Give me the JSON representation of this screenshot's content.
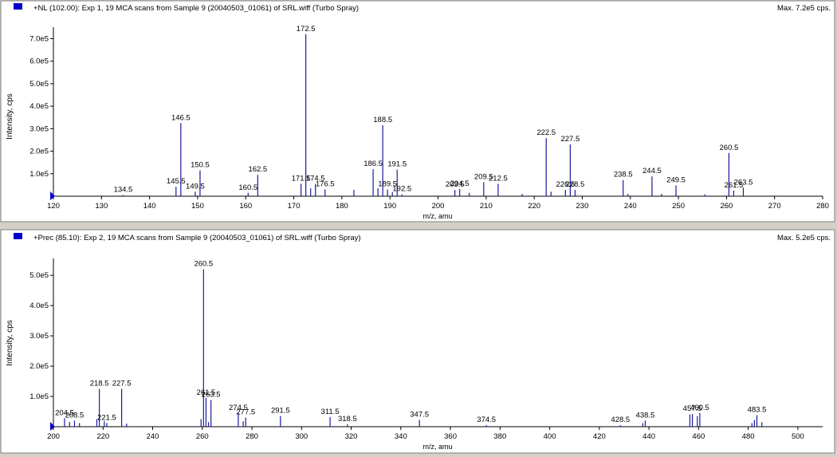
{
  "chart_data": [
    {
      "type": "bar",
      "title": "+NL (102.00): Exp 1, 19 MCA scans from Sample 9 (20040503_01061) of SRL.wiff (Turbo Spray)",
      "max_label": "Max. 7.2e5 cps.",
      "xlabel": "m/z, amu",
      "ylabel": "Intensity, cps",
      "xlim": [
        120,
        280
      ],
      "ylim": [
        0,
        730000
      ],
      "xticks": [
        120,
        130,
        140,
        150,
        160,
        170,
        180,
        190,
        200,
        210,
        220,
        230,
        240,
        250,
        260,
        270,
        280
      ],
      "yticks": [
        {
          "value": 100000,
          "label": "1.0e5"
        },
        {
          "value": 200000,
          "label": "2.0e5"
        },
        {
          "value": 300000,
          "label": "3.0e5"
        },
        {
          "value": 400000,
          "label": "4.0e5"
        },
        {
          "value": 500000,
          "label": "5.0e5"
        },
        {
          "value": 600000,
          "label": "6.0e5"
        },
        {
          "value": 700000,
          "label": "7.0e5"
        }
      ],
      "peaks": [
        {
          "x": 134.5,
          "y": 5000,
          "label": "134.5"
        },
        {
          "x": 145.5,
          "y": 42000,
          "label": "145.5"
        },
        {
          "x": 146.5,
          "y": 325000,
          "label": "146.5"
        },
        {
          "x": 149.5,
          "y": 20000,
          "label": "149.5"
        },
        {
          "x": 150.5,
          "y": 115000,
          "label": "150.5"
        },
        {
          "x": 160.5,
          "y": 15000,
          "label": "160.5"
        },
        {
          "x": 162.5,
          "y": 95000,
          "label": "162.5"
        },
        {
          "x": 171.5,
          "y": 55000,
          "label": "171.5"
        },
        {
          "x": 172.5,
          "y": 720000,
          "label": "172.5"
        },
        {
          "x": 173.5,
          "y": 35000,
          "label": ""
        },
        {
          "x": 174.5,
          "y": 55000,
          "label": "174.5"
        },
        {
          "x": 176.5,
          "y": 30000,
          "label": "176.5"
        },
        {
          "x": 182.5,
          "y": 28000,
          "label": ""
        },
        {
          "x": 186.5,
          "y": 120000,
          "label": "186.5"
        },
        {
          "x": 187.5,
          "y": 35000,
          "label": ""
        },
        {
          "x": 188.5,
          "y": 315000,
          "label": "188.5"
        },
        {
          "x": 189.5,
          "y": 30000,
          "label": "189.5"
        },
        {
          "x": 190.5,
          "y": 18000,
          "label": ""
        },
        {
          "x": 191.5,
          "y": 118000,
          "label": "191.5"
        },
        {
          "x": 192.5,
          "y": 8000,
          "label": "192.5"
        },
        {
          "x": 203.5,
          "y": 28000,
          "label": "203.5"
        },
        {
          "x": 204.5,
          "y": 32000,
          "label": "204.5"
        },
        {
          "x": 206.5,
          "y": 15000,
          "label": ""
        },
        {
          "x": 209.5,
          "y": 62000,
          "label": "209.5"
        },
        {
          "x": 212.5,
          "y": 55000,
          "label": "212.5"
        },
        {
          "x": 217.5,
          "y": 10000,
          "label": ""
        },
        {
          "x": 222.5,
          "y": 258000,
          "label": "222.5"
        },
        {
          "x": 223.5,
          "y": 20000,
          "label": ""
        },
        {
          "x": 226.5,
          "y": 28000,
          "label": "226.5"
        },
        {
          "x": 227.5,
          "y": 230000,
          "label": "227.5"
        },
        {
          "x": 228.5,
          "y": 28000,
          "label": "228.5"
        },
        {
          "x": 238.5,
          "y": 72000,
          "label": "238.5"
        },
        {
          "x": 239.5,
          "y": 10000,
          "label": ""
        },
        {
          "x": 244.5,
          "y": 88000,
          "label": "244.5"
        },
        {
          "x": 246.5,
          "y": 10000,
          "label": ""
        },
        {
          "x": 249.5,
          "y": 48000,
          "label": "249.5"
        },
        {
          "x": 255.5,
          "y": 8000,
          "label": ""
        },
        {
          "x": 260.5,
          "y": 192000,
          "label": "260.5"
        },
        {
          "x": 261.5,
          "y": 25000,
          "label": "261.5"
        },
        {
          "x": 263.5,
          "y": 38000,
          "label": "263.5"
        }
      ]
    },
    {
      "type": "bar",
      "title": "+Prec (85.10): Exp 2, 19 MCA scans from Sample 9 (20040503_01061) of SRL.wiff (Turbo Spray)",
      "max_label": "Max. 5.2e5 cps.",
      "xlabel": "m/z, amu",
      "ylabel": "Intensity, cps",
      "xlim": [
        200,
        510
      ],
      "ylim": [
        0,
        540000
      ],
      "xticks": [
        200,
        220,
        240,
        260,
        280,
        300,
        320,
        340,
        360,
        380,
        400,
        420,
        440,
        460,
        480,
        500
      ],
      "yticks": [
        {
          "value": 100000,
          "label": "1.0e5"
        },
        {
          "value": 200000,
          "label": "2.0e5"
        },
        {
          "value": 300000,
          "label": "3.0e5"
        },
        {
          "value": 400000,
          "label": "4.0e5"
        },
        {
          "value": 500000,
          "label": "5.0e5"
        }
      ],
      "peaks": [
        {
          "x": 204.5,
          "y": 28000,
          "label": "204.5"
        },
        {
          "x": 206.5,
          "y": 15000,
          "label": ""
        },
        {
          "x": 208.5,
          "y": 20000,
          "label": "208.5"
        },
        {
          "x": 210.5,
          "y": 12000,
          "label": ""
        },
        {
          "x": 217.5,
          "y": 25000,
          "label": ""
        },
        {
          "x": 218.5,
          "y": 125000,
          "label": "218.5"
        },
        {
          "x": 220.5,
          "y": 18000,
          "label": ""
        },
        {
          "x": 221.5,
          "y": 12000,
          "label": "221.5"
        },
        {
          "x": 227.5,
          "y": 125000,
          "label": "227.5"
        },
        {
          "x": 229.5,
          "y": 10000,
          "label": ""
        },
        {
          "x": 259.5,
          "y": 25000,
          "label": ""
        },
        {
          "x": 260.5,
          "y": 520000,
          "label": "260.5"
        },
        {
          "x": 261.5,
          "y": 95000,
          "label": "261.5"
        },
        {
          "x": 262.5,
          "y": 15000,
          "label": ""
        },
        {
          "x": 263.5,
          "y": 88000,
          "label": "263.5"
        },
        {
          "x": 274.5,
          "y": 45000,
          "label": "274.5"
        },
        {
          "x": 276.5,
          "y": 18000,
          "label": ""
        },
        {
          "x": 277.5,
          "y": 30000,
          "label": "277.5"
        },
        {
          "x": 291.5,
          "y": 35000,
          "label": "291.5"
        },
        {
          "x": 311.5,
          "y": 32000,
          "label": "311.5"
        },
        {
          "x": 318.5,
          "y": 8000,
          "label": "318.5"
        },
        {
          "x": 347.5,
          "y": 22000,
          "label": "347.5"
        },
        {
          "x": 374.5,
          "y": 5000,
          "label": "374.5"
        },
        {
          "x": 428.5,
          "y": 5000,
          "label": "428.5"
        },
        {
          "x": 437.5,
          "y": 12000,
          "label": ""
        },
        {
          "x": 438.5,
          "y": 20000,
          "label": "438.5"
        },
        {
          "x": 456.5,
          "y": 40000,
          "label": ""
        },
        {
          "x": 457.5,
          "y": 42000,
          "label": "457.5"
        },
        {
          "x": 459.5,
          "y": 35000,
          "label": ""
        },
        {
          "x": 460.5,
          "y": 45000,
          "label": "460.5"
        },
        {
          "x": 481.5,
          "y": 12000,
          "label": ""
        },
        {
          "x": 482.5,
          "y": 22000,
          "label": ""
        },
        {
          "x": 483.5,
          "y": 38000,
          "label": "483.5"
        },
        {
          "x": 485.5,
          "y": 15000,
          "label": ""
        }
      ]
    }
  ]
}
